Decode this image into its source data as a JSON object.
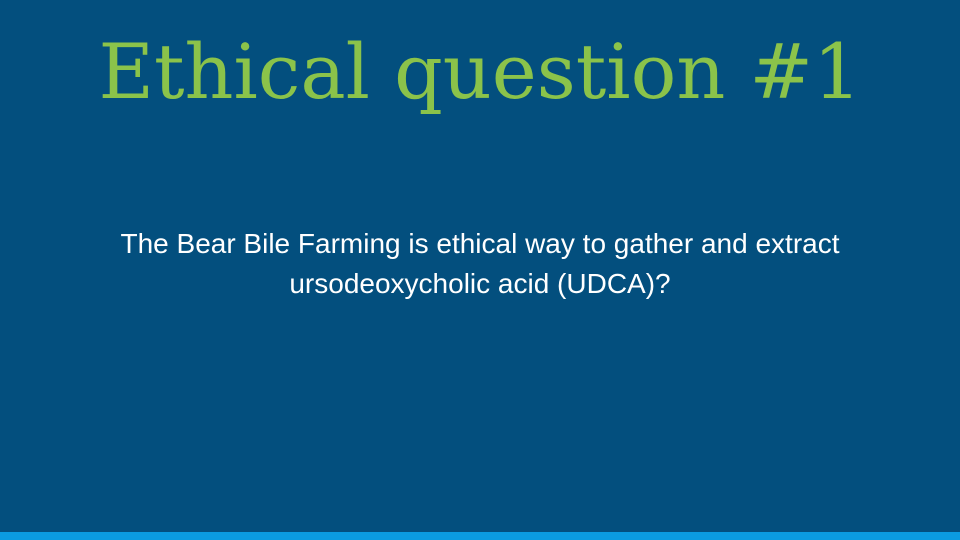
{
  "slide": {
    "title": "Ethical question #1",
    "body_lines": [
      "The Bear Bile Farming is ethical way to gather and extract",
      "ursodeoxycholic acid (UDCA)?"
    ]
  },
  "colors": {
    "background": "#034f7e",
    "title": "#8bc34a",
    "body_text": "#ffffff",
    "accent_bar": "#0b9be0"
  }
}
